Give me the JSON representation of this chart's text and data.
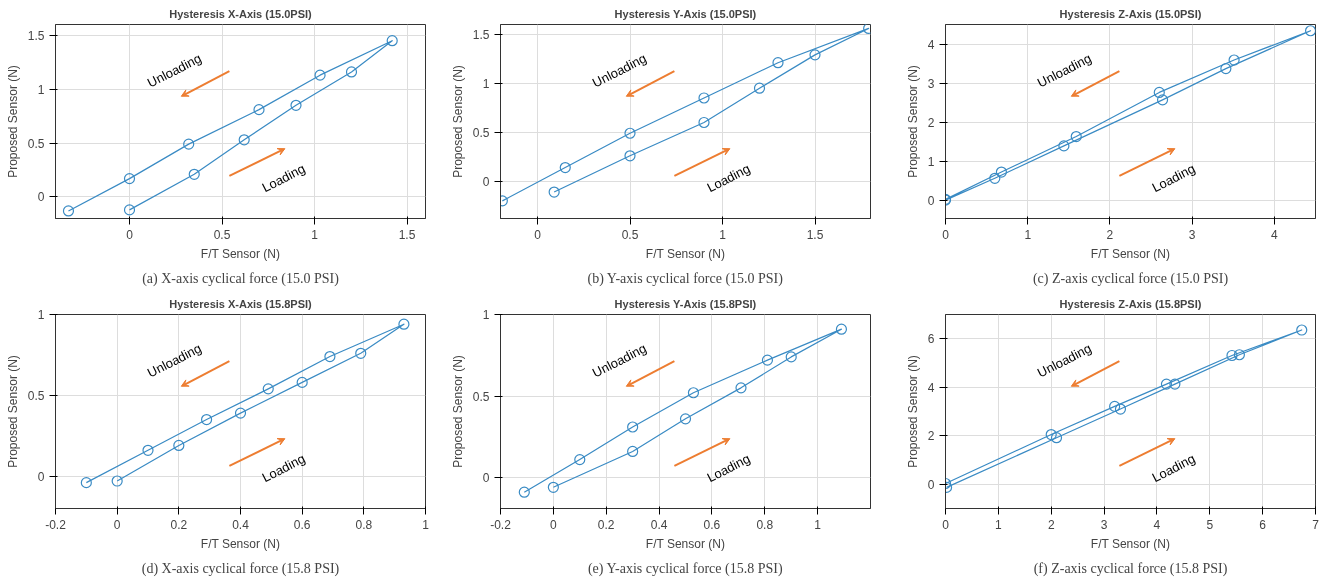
{
  "chart_data": [
    {
      "type": "line",
      "title": "Hysteresis X-Axis (15.0PSI)",
      "xlabel": "F/T Sensor (N)",
      "ylabel": "Proposed Sensor (N)",
      "marker": "circle",
      "line_style": "solid",
      "grid": true,
      "xlim": [
        -0.4,
        1.6
      ],
      "xticks": [
        0,
        0.5,
        1,
        1.5
      ],
      "ylim": [
        -0.2,
        1.6
      ],
      "yticks": [
        0,
        0.5,
        1,
        1.5
      ],
      "annotations": [
        "Unloading",
        "Loading",
        "(a) X-axis cyclical force (15.0 PSI)"
      ],
      "series": [
        {
          "color": "#3a8bc4",
          "x": [
            0,
            0.35,
            0.62,
            0.9,
            1.2,
            1.42,
            1.03,
            0.7,
            0.32,
            0,
            -0.33
          ],
          "values": [
            -0.12,
            0.21,
            0.53,
            0.85,
            1.16,
            1.45,
            1.13,
            0.81,
            0.49,
            0.17,
            -0.13
          ]
        }
      ]
    },
    {
      "type": "line",
      "title": "Hysteresis Y-Axis (15.0PSI)",
      "xlabel": "F/T Sensor (N)",
      "ylabel": "Proposed Sensor (N)",
      "marker": "circle",
      "line_style": "solid",
      "grid": true,
      "xlim": [
        -0.2,
        1.8
      ],
      "xticks": [
        0,
        0.5,
        1,
        1.5
      ],
      "ylim": [
        -0.38,
        1.6
      ],
      "yticks": [
        0,
        0.5,
        1,
        1.5
      ],
      "annotations": [
        "Unloading",
        "Loading",
        "(b) Y-axis cyclical force (15.0 PSI)"
      ],
      "series": [
        {
          "color": "#3a8bc4",
          "x": [
            0.09,
            0.5,
            0.9,
            1.2,
            1.5,
            1.79,
            1.3,
            0.9,
            0.5,
            0.15,
            -0.19
          ],
          "values": [
            -0.11,
            0.26,
            0.6,
            0.95,
            1.29,
            1.56,
            1.21,
            0.85,
            0.49,
            0.14,
            -0.2
          ]
        }
      ]
    },
    {
      "type": "line",
      "title": "Hysteresis Z-Axis (15.0PSI)",
      "xlabel": "F/T Sensor (N)",
      "ylabel": "Proposed Sensor (N)",
      "marker": "circle",
      "line_style": "solid",
      "grid": true,
      "xlim": [
        0,
        4.5
      ],
      "xticks": [
        0,
        1,
        2,
        3,
        4
      ],
      "ylim": [
        -0.47,
        4.5
      ],
      "yticks": [
        0,
        1,
        2,
        3,
        4
      ],
      "annotations": [
        "Unloading",
        "Loading",
        "(c) Z-axis cyclical force (15.0 PSI)"
      ],
      "series": [
        {
          "color": "#3a8bc4",
          "x": [
            0,
            0.6,
            1.44,
            2.64,
            3.41,
            4.44,
            3.51,
            2.6,
            1.59,
            0.68,
            0
          ],
          "values": [
            0,
            0.56,
            1.39,
            2.57,
            3.37,
            4.34,
            3.59,
            2.76,
            1.63,
            0.72,
            0.02
          ]
        }
      ]
    },
    {
      "type": "line",
      "title": "Hysteresis X-Axis (15.8PSI)",
      "xlabel": "F/T Sensor (N)",
      "ylabel": "Proposed Sensor (N)",
      "marker": "circle",
      "line_style": "solid",
      "grid": true,
      "xlim": [
        -0.2,
        1
      ],
      "xticks": [
        -0.2,
        0,
        0.2,
        0.4,
        0.6,
        0.8,
        1
      ],
      "ylim": [
        -0.2,
        1
      ],
      "yticks": [
        0,
        0.5,
        1
      ],
      "annotations": [
        "Unloading",
        "Loading",
        "(d) X-axis cyclical force (15.8 PSI)"
      ],
      "series": [
        {
          "color": "#3a8bc4",
          "x": [
            0,
            0.2,
            0.4,
            0.6,
            0.79,
            0.93,
            0.69,
            0.49,
            0.29,
            0.1,
            -0.1
          ],
          "values": [
            -0.03,
            0.19,
            0.39,
            0.58,
            0.76,
            0.94,
            0.74,
            0.54,
            0.35,
            0.16,
            -0.04
          ]
        }
      ]
    },
    {
      "type": "line",
      "title": "Hysteresis Y-Axis (15.8PSI)",
      "xlabel": "F/T Sensor (N)",
      "ylabel": "Proposed Sensor (N)",
      "marker": "circle",
      "line_style": "solid",
      "grid": true,
      "xlim": [
        -0.2,
        1.2
      ],
      "xticks": [
        -0.2,
        0,
        0.2,
        0.4,
        0.6,
        0.8,
        1
      ],
      "ylim": [
        -0.19,
        1
      ],
      "yticks": [
        0,
        0.5,
        1
      ],
      "annotations": [
        "Unloading",
        "Loading",
        "(e) Y-axis cyclical force (15.8 PSI)"
      ],
      "series": [
        {
          "color": "#3a8bc4",
          "x": [
            0,
            0.3,
            0.5,
            0.71,
            0.9,
            1.09,
            0.81,
            0.53,
            0.3,
            0.1,
            -0.11
          ],
          "values": [
            -0.06,
            0.16,
            0.36,
            0.55,
            0.74,
            0.91,
            0.72,
            0.52,
            0.31,
            0.11,
            -0.09
          ]
        }
      ]
    },
    {
      "type": "line",
      "title": "Hysteresis Z-Axis (15.8PSI)",
      "xlabel": "F/T Sensor (N)",
      "ylabel": "Proposed Sensor (N)",
      "marker": "circle",
      "line_style": "solid",
      "grid": true,
      "xlim": [
        0,
        7
      ],
      "xticks": [
        0,
        1,
        2,
        3,
        4,
        5,
        6,
        7
      ],
      "ylim": [
        -1,
        7
      ],
      "yticks": [
        0,
        2,
        4,
        6
      ],
      "annotations": [
        "Unloading",
        "Loading",
        "(f) Z-axis cyclical force (15.8 PSI)"
      ],
      "series": [
        {
          "color": "#3a8bc4",
          "x": [
            0.02,
            2.1,
            3.31,
            4.34,
            5.56,
            6.74,
            5.42,
            4.18,
            3.2,
            2.0,
            0
          ],
          "values": [
            -0.13,
            1.92,
            3.1,
            4.13,
            5.34,
            6.36,
            5.31,
            4.13,
            3.21,
            2.05,
            0.03
          ]
        }
      ]
    }
  ]
}
